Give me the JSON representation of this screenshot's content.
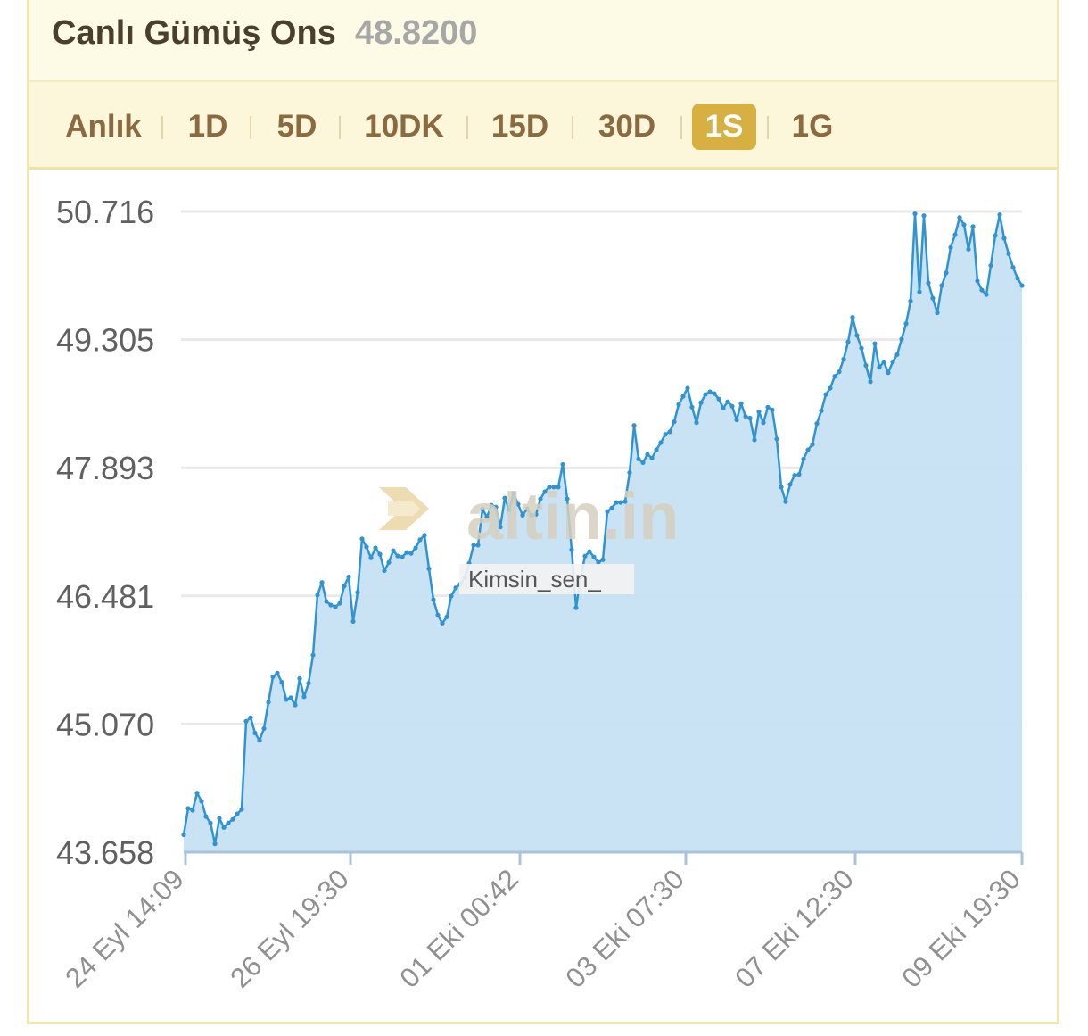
{
  "header": {
    "title": "Canlı Gümüş Ons",
    "price": "48.8200"
  },
  "tabs": [
    {
      "label": "Anlık",
      "active": false
    },
    {
      "label": "1D",
      "active": false
    },
    {
      "label": "5D",
      "active": false
    },
    {
      "label": "10DK",
      "active": false
    },
    {
      "label": "15D",
      "active": false
    },
    {
      "label": "30D",
      "active": false
    },
    {
      "label": "1S",
      "active": true
    },
    {
      "label": "1G",
      "active": false
    }
  ],
  "watermark": {
    "brand": "altin.in",
    "user": "Kimsin_sen_"
  },
  "colors": {
    "line": "#2f94d1",
    "fill": "#c6e0f3",
    "accent": "#d7b042",
    "header_bg": "#fdfbe6"
  },
  "chart_data": {
    "type": "area",
    "title": "",
    "xlabel": "",
    "ylabel": "",
    "ylim": [
      43.658,
      50.716
    ],
    "yticks": [
      "50.716",
      "49.305",
      "47.893",
      "46.481",
      "45.070",
      "43.658"
    ],
    "x_tick_labels": [
      "24 Eyl 14:09",
      "26 Eyl 19:30",
      "01 Eki 00:42",
      "03 Eki 07:30",
      "07 Eki 12:30",
      "09 Eki 19:30"
    ],
    "grid": true,
    "series": [
      {
        "values": [
          43.85,
          44.14,
          44.12,
          44.31,
          44.22,
          44.05,
          43.98,
          43.75,
          44.03,
          43.93,
          43.98,
          44.02,
          44.08,
          44.13,
          45.1,
          45.14,
          44.97,
          44.89,
          45.02,
          45.31,
          45.59,
          45.63,
          45.53,
          45.34,
          45.36,
          45.28,
          45.57,
          45.37,
          45.52,
          45.83,
          46.49,
          46.63,
          46.42,
          46.38,
          46.36,
          46.4,
          46.59,
          46.69,
          46.2,
          46.52,
          47.11,
          47.02,
          46.9,
          47.01,
          46.94,
          46.76,
          46.85,
          46.98,
          46.92,
          46.91,
          46.96,
          46.95,
          47.01,
          47.1,
          47.15,
          46.78,
          46.44,
          46.27,
          46.18,
          46.25,
          46.48,
          46.57,
          46.61,
          46.68,
          46.84,
          47.04,
          47.04,
          47.44,
          47.35,
          47.48,
          47.46,
          47.24,
          47.56,
          47.43,
          47.61,
          47.49,
          47.37,
          47.44,
          47.37,
          47.38,
          47.55,
          47.63,
          47.68,
          47.68,
          47.68,
          47.93,
          47.55,
          46.99,
          46.35,
          46.69,
          46.92,
          46.97,
          46.91,
          46.85,
          46.88,
          47.41,
          47.45,
          47.51,
          47.51,
          47.52,
          47.84,
          48.36,
          47.99,
          47.95,
          48.04,
          48.0,
          48.09,
          48.17,
          48.26,
          48.29,
          48.4,
          48.59,
          48.68,
          48.77,
          48.56,
          48.39,
          48.61,
          48.7,
          48.73,
          48.71,
          48.65,
          48.55,
          48.62,
          48.57,
          48.42,
          48.6,
          48.46,
          48.44,
          48.2,
          48.51,
          48.39,
          48.56,
          48.53,
          48.21,
          47.68,
          47.52,
          47.71,
          47.81,
          47.82,
          47.99,
          48.09,
          48.15,
          48.38,
          48.52,
          48.7,
          48.77,
          48.9,
          48.95,
          49.09,
          49.28,
          49.55,
          49.35,
          49.21,
          49.02,
          48.84,
          49.26,
          49.0,
          49.06,
          48.94,
          49.06,
          49.14,
          49.31,
          49.48,
          49.73,
          50.69,
          49.83,
          50.67,
          49.93,
          49.76,
          49.6,
          49.9,
          50.04,
          50.32,
          50.46,
          50.65,
          50.57,
          50.3,
          50.55,
          49.95,
          49.85,
          49.8,
          50.12,
          50.45,
          50.68,
          50.42,
          50.25,
          50.1,
          49.98,
          49.9
        ]
      }
    ]
  }
}
